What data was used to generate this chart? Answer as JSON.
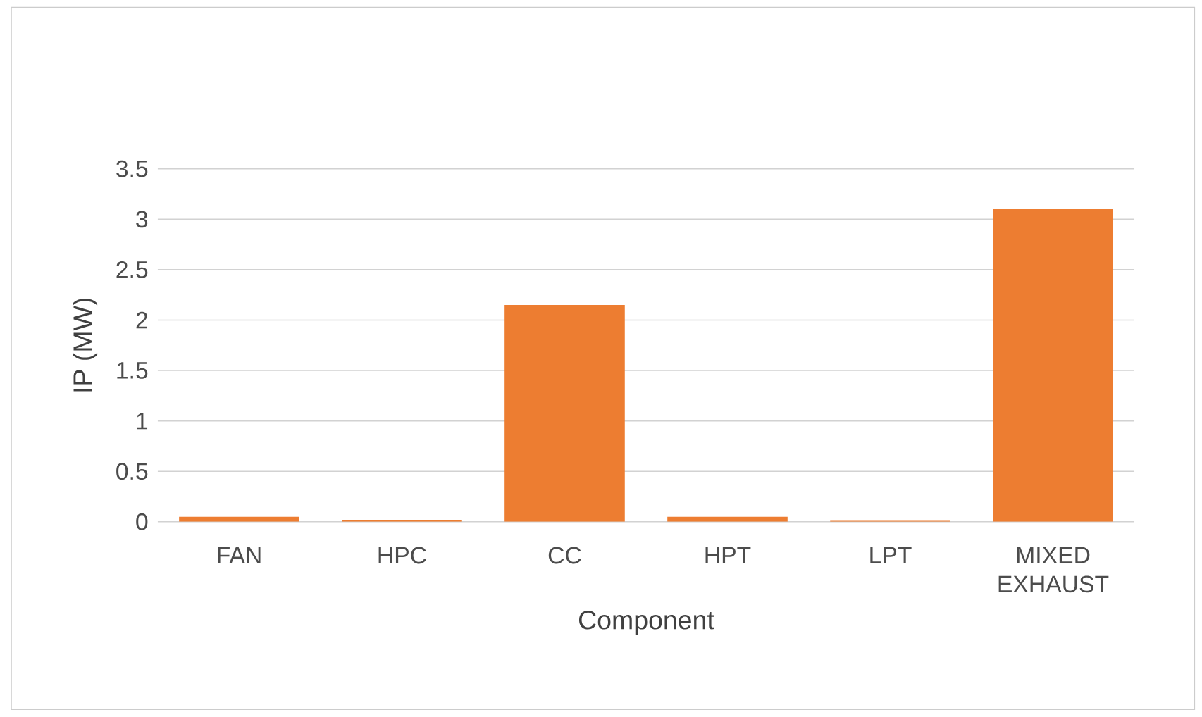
{
  "chart_data": {
    "type": "bar",
    "xlabel": "Component",
    "ylabel": "IP (MW)",
    "categories": [
      "FAN",
      "HPC",
      "CC",
      "HPT",
      "LPT",
      "MIXED EXHAUST"
    ],
    "values": [
      0.05,
      0.02,
      2.15,
      0.05,
      0.01,
      3.1
    ],
    "color": "#ed7d31",
    "ylim": [
      0,
      3.5
    ],
    "yticks": [
      0,
      0.5,
      1,
      1.5,
      2,
      2.5,
      3,
      3.5
    ],
    "grid": "y"
  }
}
